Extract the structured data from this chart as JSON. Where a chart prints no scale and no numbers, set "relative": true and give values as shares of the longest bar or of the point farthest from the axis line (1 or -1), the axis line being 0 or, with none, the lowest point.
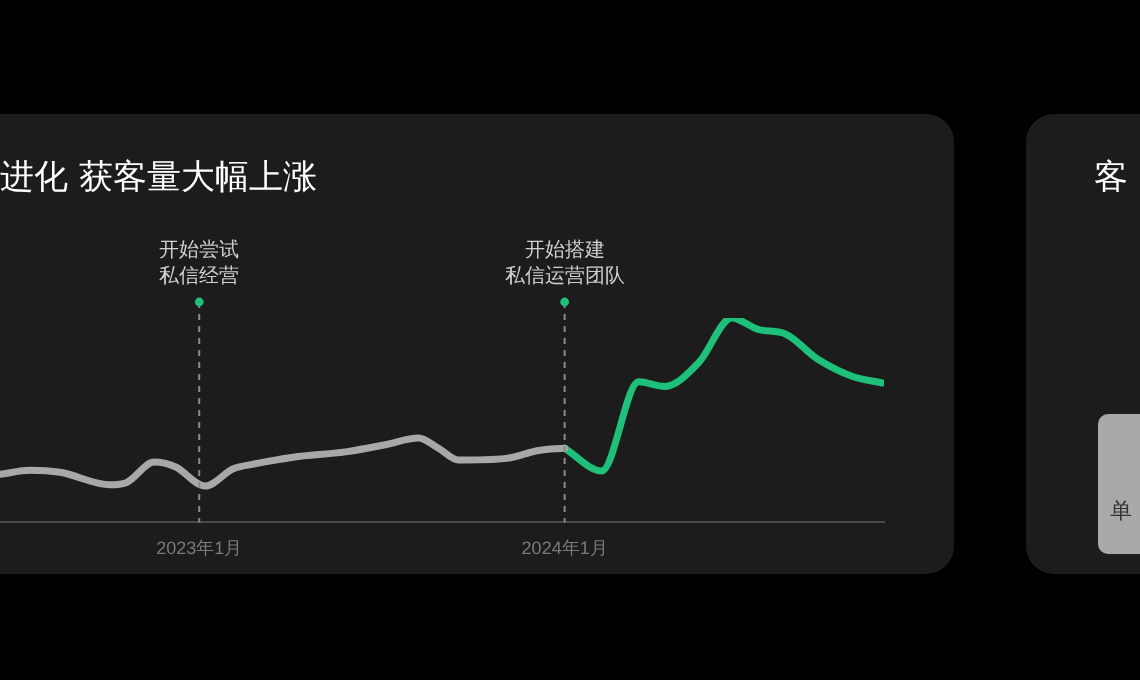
{
  "chart_data": [
    {
      "type": "line",
      "title": "进化 获客量大幅上涨",
      "relative": true,
      "xlim": [
        "2022-06-16",
        "2024-11-15"
      ],
      "xticks": [
        {
          "value": "2023-01-01",
          "label": "2023年1月"
        },
        {
          "value": "2024-01-01",
          "label": "2024年1月"
        }
      ],
      "grid": false,
      "legend": false,
      "marker": "none",
      "line_style": "solid",
      "series": [
        {
          "color": "#a8a8a8",
          "x": [
            "2022-06-16",
            "2022-07-16",
            "2022-08-15",
            "2022-10-04",
            "2022-10-20",
            "2022-11-17",
            "2022-12-08",
            "2023-01-07",
            "2023-02-04",
            "2023-02-24",
            "2023-04-05",
            "2023-05-27",
            "2023-07-06",
            "2023-08-08",
            "2023-08-28",
            "2023-09-17",
            "2023-11-02",
            "2023-12-06",
            "2024-01-01"
          ],
          "values": [
            0.235,
            0.255,
            0.245,
            0.184,
            0.194,
            0.295,
            0.272,
            0.178,
            0.262,
            0.285,
            0.319,
            0.345,
            0.38,
            0.413,
            0.363,
            0.305,
            0.312,
            0.352,
            0.363
          ]
        },
        {
          "color": "#1fc07a",
          "x": [
            "2024-01-01",
            "2024-02-07",
            "2024-03-15",
            "2024-04-10",
            "2024-05-14",
            "2024-06-16",
            "2024-07-13",
            "2024-08-08",
            "2024-09-10",
            "2024-10-14",
            "2024-11-13"
          ],
          "values": [
            0.363,
            0.252,
            0.688,
            0.665,
            0.782,
            1,
            0.943,
            0.923,
            0.798,
            0.715,
            0.682
          ]
        }
      ],
      "ref_lines": [
        {
          "axis": "x",
          "value": "2023-01-01",
          "label": "开始尝试私信经营",
          "color": "#8a8a8a",
          "line_style": "dashed"
        },
        {
          "axis": "x",
          "value": "2024-01-01",
          "label": "开始搭建私信运营团队",
          "color": "#8a8a8a",
          "line_style": "dashed"
        }
      ]
    },
    {
      "type": "other",
      "title": "客",
      "annotations": [
        "单"
      ]
    }
  ]
}
